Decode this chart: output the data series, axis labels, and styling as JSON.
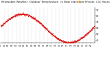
{
  "title": "Milwaukee Weather  Outdoor Temperature  vs Heat Index  per Minute  (24 Hours)",
  "bg_color": "#ffffff",
  "plot_bg_color": "#ffffff",
  "dot_color": "#dd0000",
  "legend_dot_color": "#ff8800",
  "grid_color": "#999999",
  "ymin": 37,
  "ymax": 93,
  "ytick_values": [
    40,
    50,
    60,
    70,
    80,
    90
  ],
  "title_fontsize": 2.8,
  "tick_fontsize": 2.2,
  "n_minutes": 1440,
  "vgrid_every": 60
}
